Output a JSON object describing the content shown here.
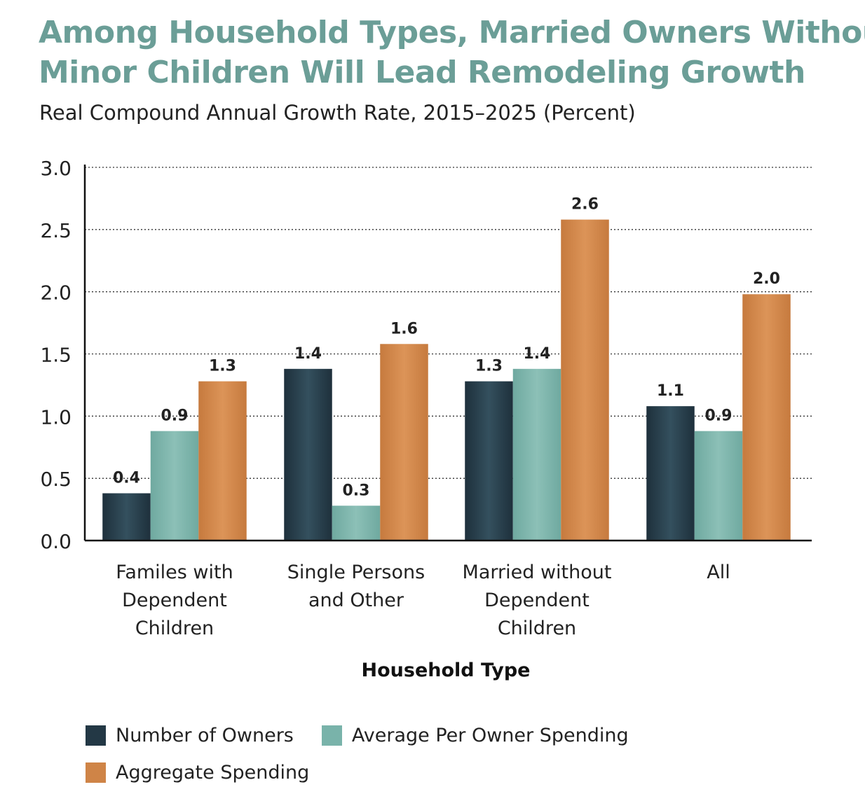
{
  "title": {
    "line1": "Among Household Types, Married Owners Without",
    "line2": "Minor Children Will Lead Remodeling Growth"
  },
  "subtitle": "Real Compound Annual Growth Rate, 2015–2025 (Percent)",
  "colors": {
    "title": "#6b9e97",
    "owners": "#233845",
    "per_owner": "#79b3aa",
    "aggregate": "#cf8447"
  },
  "legend": {
    "owners": "Number of Owners",
    "per_owner": "Average Per Owner Spending",
    "aggregate": "Aggregate Spending"
  },
  "chart_data": {
    "type": "bar",
    "title": "Among Household Types, Married Owners Without Minor Children Will Lead Remodeling Growth",
    "subtitle": "Real Compound Annual Growth Rate, 2015–2025 (Percent)",
    "xlabel": "Household Type",
    "ylabel": "",
    "ylim": [
      0,
      3.0
    ],
    "yticks": [
      "0.0",
      "0.5",
      "1.0",
      "1.5",
      "2.0",
      "2.5",
      "3.0"
    ],
    "grid": "horizontal dotted",
    "legend_position": "bottom-left",
    "categories": [
      [
        "Familes with",
        "Dependent",
        "Children"
      ],
      [
        "Single Persons",
        "and Other"
      ],
      [
        "Married without",
        "Dependent",
        "Children"
      ],
      [
        "All"
      ]
    ],
    "series": [
      {
        "name": "Number of Owners",
        "color": "#233845",
        "values": [
          0.38,
          1.38,
          1.28,
          1.08
        ],
        "labels": [
          "0.4",
          "1.4",
          "1.3",
          "1.1"
        ]
      },
      {
        "name": "Average Per Owner Spending",
        "color": "#79b3aa",
        "values": [
          0.88,
          0.28,
          1.38,
          0.88
        ],
        "labels": [
          "0.9",
          "0.3",
          "1.4",
          "0.9"
        ]
      },
      {
        "name": "Aggregate Spending",
        "color": "#cf8447",
        "values": [
          1.28,
          1.58,
          2.58,
          1.98
        ],
        "labels": [
          "1.3",
          "1.6",
          "2.6",
          "2.0"
        ]
      }
    ]
  }
}
